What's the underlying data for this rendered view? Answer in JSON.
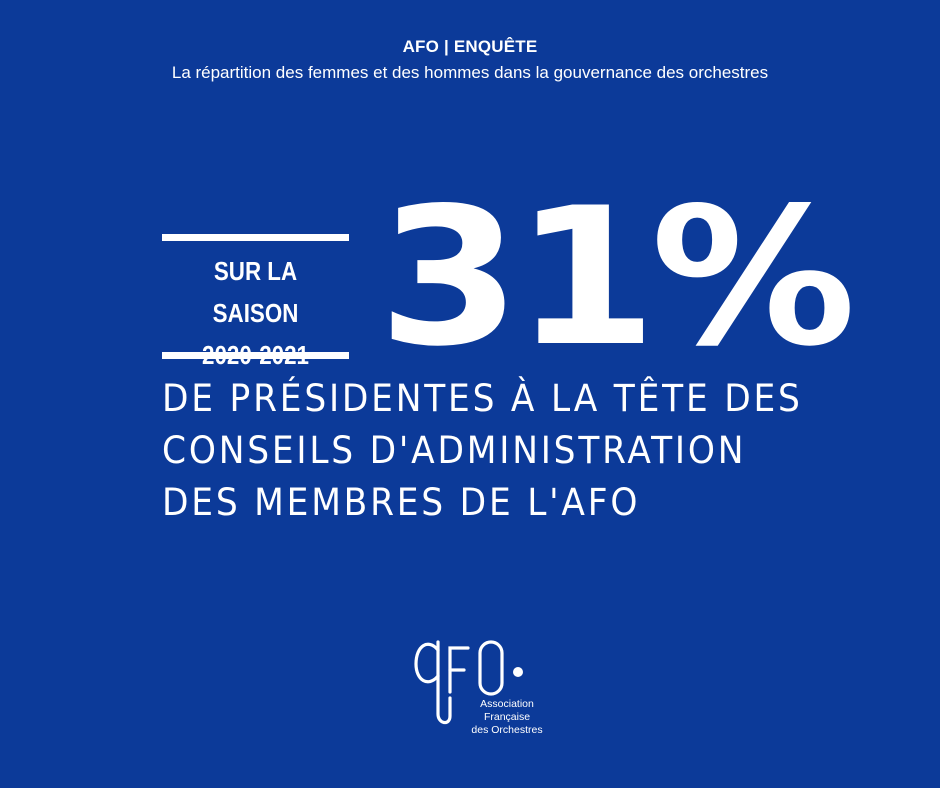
{
  "header": {
    "title": "AFO | ENQUÊTE",
    "subtitle": "La répartition des femmes et des hommes dans la gouvernance des orchestres"
  },
  "season": {
    "line1": "SUR LA SAISON",
    "line2": "2020-2021"
  },
  "figure": "31%",
  "statement": [
    "DE PRÉSIDENTES À LA TÊTE DES",
    "CONSEILS D'ADMINISTRATION",
    "DES MEMBRES DE L'AFO"
  ],
  "logo": {
    "mark": "AFO",
    "caption": [
      "Association",
      "Française",
      "des Orchestres"
    ]
  },
  "colors": {
    "background": "#0c3a99",
    "foreground": "#ffffff"
  }
}
